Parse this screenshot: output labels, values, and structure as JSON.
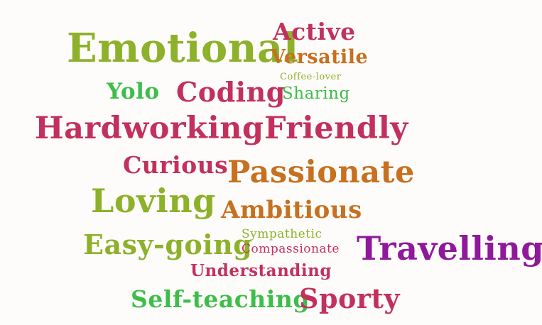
{
  "word_cloud": {
    "words": {
      "emotional": "Emotional",
      "active": "Active",
      "versatile": "Versatile",
      "coffee_lover": "Coffee-lover",
      "yolo": "Yolo",
      "coding": "Coding",
      "sharing": "Sharing",
      "hardworking": "Hardworking",
      "friendly": "Friendly",
      "curious": "Curious",
      "passionate": "Passionate",
      "loving": "Loving",
      "ambitious": "Ambitious",
      "sympathetic": "Sympathetic",
      "easy_going": "Easy-going",
      "compassionate": "Compassionate",
      "travelling": "Travelling",
      "understanding": "Understanding",
      "self_teaching": "Self-teaching",
      "sporty": "Sporty"
    },
    "colors": {
      "olive": "#8db12a",
      "crimson": "#c2305e",
      "orange": "#c7701f",
      "green": "#3dbe4a",
      "purple": "#8e1a9b",
      "background": "#fdfcfa"
    }
  }
}
